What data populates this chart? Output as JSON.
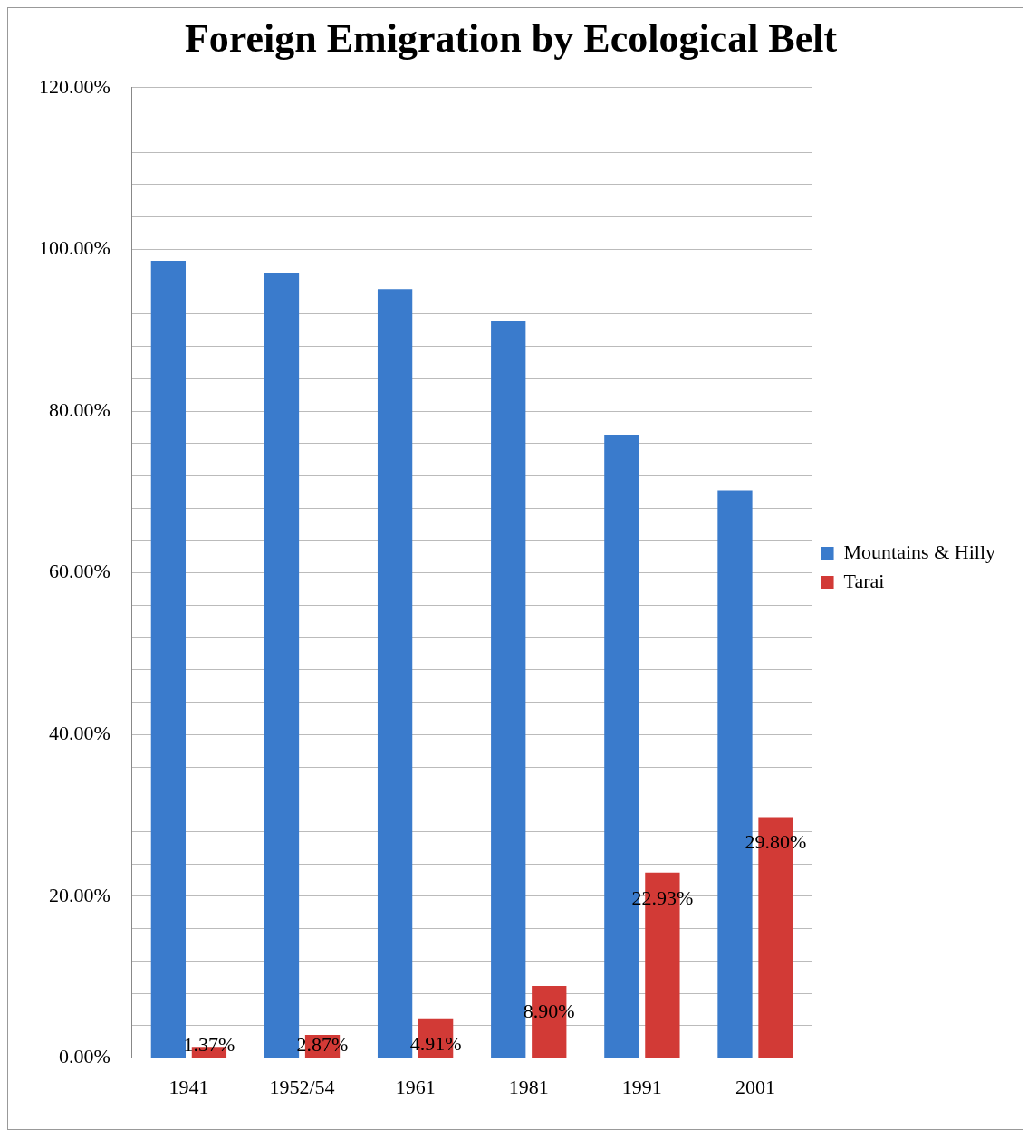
{
  "chart_data": {
    "type": "bar",
    "title": "Foreign Emigration by Ecological Belt",
    "categories": [
      "1941",
      "1952/54",
      "1961",
      "1981",
      "1991",
      "2001"
    ],
    "series": [
      {
        "name": "Mountains & Hilly",
        "color": "#3a7bcc",
        "values": [
          98.6,
          97.1,
          95.1,
          91.1,
          77.1,
          70.2
        ]
      },
      {
        "name": "Tarai",
        "color": "#d23a36",
        "values": [
          1.37,
          2.87,
          4.91,
          8.9,
          22.93,
          29.8
        ],
        "value_labels": [
          "1.37%",
          "2.87%",
          "4.91%",
          "8.90%",
          "22.93%",
          "29.80%"
        ]
      }
    ],
    "ylim": [
      0,
      120
    ],
    "yticks": [
      {
        "value": 0,
        "label": "0.00%"
      },
      {
        "value": 4,
        "label": null
      },
      {
        "value": 8,
        "label": null
      },
      {
        "value": 12,
        "label": null
      },
      {
        "value": 16,
        "label": null
      },
      {
        "value": 20,
        "label": "20.00%"
      },
      {
        "value": 24,
        "label": null
      },
      {
        "value": 28,
        "label": null
      },
      {
        "value": 32,
        "label": null
      },
      {
        "value": 36,
        "label": null
      },
      {
        "value": 40,
        "label": "40.00%"
      },
      {
        "value": 44,
        "label": null
      },
      {
        "value": 48,
        "label": null
      },
      {
        "value": 52,
        "label": null
      },
      {
        "value": 56,
        "label": null
      },
      {
        "value": 60,
        "label": "60.00%"
      },
      {
        "value": 64,
        "label": null
      },
      {
        "value": 68,
        "label": null
      },
      {
        "value": 72,
        "label": null
      },
      {
        "value": 76,
        "label": null
      },
      {
        "value": 80,
        "label": "80.00%"
      },
      {
        "value": 84,
        "label": null
      },
      {
        "value": 88,
        "label": null
      },
      {
        "value": 92,
        "label": null
      },
      {
        "value": 96,
        "label": null
      },
      {
        "value": 100,
        "label": "100.00%"
      },
      {
        "value": 104,
        "label": null
      },
      {
        "value": 108,
        "label": null
      },
      {
        "value": 112,
        "label": null
      },
      {
        "value": 116,
        "label": null
      },
      {
        "value": 120,
        "label": "120.00%"
      }
    ],
    "grid": "y",
    "legend": "right"
  }
}
